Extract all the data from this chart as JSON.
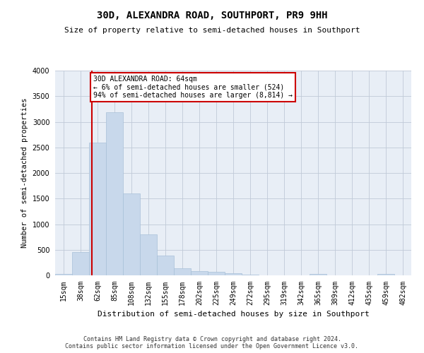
{
  "title": "30D, ALEXANDRA ROAD, SOUTHPORT, PR9 9HH",
  "subtitle": "Size of property relative to semi-detached houses in Southport",
  "xlabel": "Distribution of semi-detached houses by size in Southport",
  "ylabel": "Number of semi-detached properties",
  "footer_line1": "Contains HM Land Registry data © Crown copyright and database right 2024.",
  "footer_line2": "Contains public sector information licensed under the Open Government Licence v3.0.",
  "annotation_text_line1": "30D ALEXANDRA ROAD: 64sqm",
  "annotation_text_line2": "← 6% of semi-detached houses are smaller (524)",
  "annotation_text_line3": "94% of semi-detached houses are larger (8,814) →",
  "bar_color": "#c8d8eb",
  "bar_edge_color": "#a8c0d8",
  "vline_color": "#cc0000",
  "annotation_box_edge_color": "#cc0000",
  "annotation_box_face_color": "#ffffff",
  "background_color": "#ffffff",
  "axes_bg_color": "#e8eef6",
  "grid_color": "#c0cad8",
  "categories": [
    "15sqm",
    "38sqm",
    "62sqm",
    "85sqm",
    "108sqm",
    "132sqm",
    "155sqm",
    "178sqm",
    "202sqm",
    "225sqm",
    "249sqm",
    "272sqm",
    "295sqm",
    "319sqm",
    "342sqm",
    "365sqm",
    "389sqm",
    "412sqm",
    "435sqm",
    "459sqm",
    "482sqm"
  ],
  "values": [
    28,
    458,
    2600,
    3190,
    1600,
    795,
    388,
    140,
    78,
    70,
    38,
    10,
    5,
    5,
    5,
    30,
    0,
    0,
    0,
    28,
    0
  ],
  "vline_x": 1.65,
  "ylim": [
    0,
    4000
  ],
  "yticks": [
    0,
    500,
    1000,
    1500,
    2000,
    2500,
    3000,
    3500,
    4000
  ],
  "title_fontsize": 10,
  "subtitle_fontsize": 8,
  "ylabel_fontsize": 7.5,
  "xlabel_fontsize": 8,
  "tick_fontsize": 7,
  "footer_fontsize": 6,
  "annotation_fontsize": 7
}
